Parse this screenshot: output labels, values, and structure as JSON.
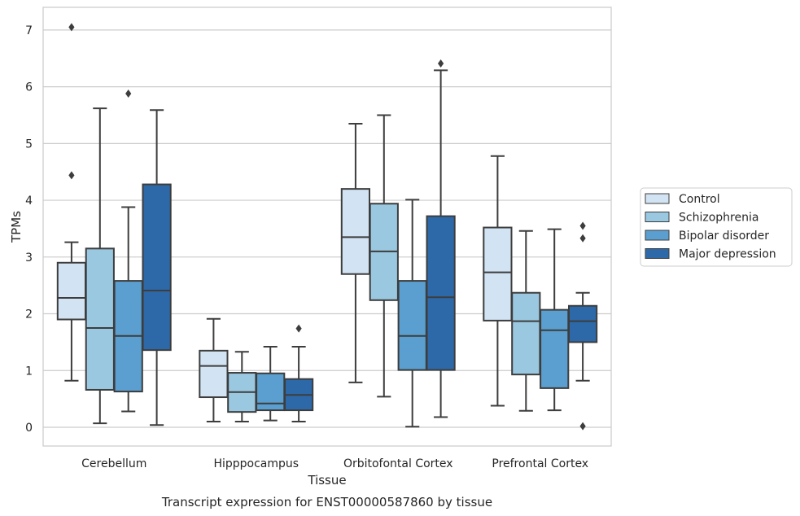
{
  "caption": "Transcript expression for ENST00000587860 by tissue",
  "chart_data": {
    "type": "boxplot",
    "xlabel": "Tissue",
    "ylabel": "TPMs",
    "ylim": [
      -0.33,
      7.4
    ],
    "yticks": [
      0,
      1,
      2,
      3,
      4,
      5,
      6,
      7
    ],
    "categories": [
      "Cerebellum",
      "Hipppocampus",
      "Orbitofontal Cortex",
      "Prefrontal Cortex"
    ],
    "grid": "horizontal",
    "legend_position": "right",
    "series": [
      {
        "name": "Control",
        "color": "#d2e3f3",
        "boxes": [
          {
            "whisker_low": 0.82,
            "q1": 1.9,
            "median": 2.28,
            "q3": 2.9,
            "whisker_high": 3.26,
            "outliers": [
              7.05,
              4.44
            ]
          },
          {
            "whisker_low": 0.1,
            "q1": 0.53,
            "median": 1.08,
            "q3": 1.35,
            "whisker_high": 1.91,
            "outliers": []
          },
          {
            "whisker_low": 0.79,
            "q1": 2.7,
            "median": 3.35,
            "q3": 4.2,
            "whisker_high": 5.35,
            "outliers": []
          },
          {
            "whisker_low": 0.38,
            "q1": 1.88,
            "median": 2.73,
            "q3": 3.52,
            "whisker_high": 4.78,
            "outliers": []
          }
        ]
      },
      {
        "name": "Schizophrenia",
        "color": "#9ac8e0",
        "boxes": [
          {
            "whisker_low": 0.07,
            "q1": 0.66,
            "median": 1.75,
            "q3": 3.15,
            "whisker_high": 5.62,
            "outliers": []
          },
          {
            "whisker_low": 0.1,
            "q1": 0.27,
            "median": 0.62,
            "q3": 0.96,
            "whisker_high": 1.33,
            "outliers": []
          },
          {
            "whisker_low": 0.54,
            "q1": 2.24,
            "median": 3.1,
            "q3": 3.94,
            "whisker_high": 5.5,
            "outliers": []
          },
          {
            "whisker_low": 0.29,
            "q1": 0.93,
            "median": 1.87,
            "q3": 2.37,
            "whisker_high": 3.46,
            "outliers": []
          }
        ]
      },
      {
        "name": "Bipolar disorder",
        "color": "#5a9fcf",
        "boxes": [
          {
            "whisker_low": 0.28,
            "q1": 0.63,
            "median": 1.61,
            "q3": 2.58,
            "whisker_high": 3.88,
            "outliers": [
              5.88
            ]
          },
          {
            "whisker_low": 0.12,
            "q1": 0.3,
            "median": 0.42,
            "q3": 0.95,
            "whisker_high": 1.42,
            "outliers": []
          },
          {
            "whisker_low": 0.01,
            "q1": 1.01,
            "median": 1.61,
            "q3": 2.58,
            "whisker_high": 4.01,
            "outliers": []
          },
          {
            "whisker_low": 0.3,
            "q1": 0.69,
            "median": 1.71,
            "q3": 2.07,
            "whisker_high": 3.49,
            "outliers": []
          }
        ]
      },
      {
        "name": "Major depression",
        "color": "#2d69a8",
        "boxes": [
          {
            "whisker_low": 0.04,
            "q1": 1.36,
            "median": 2.41,
            "q3": 4.28,
            "whisker_high": 5.59,
            "outliers": []
          },
          {
            "whisker_low": 0.1,
            "q1": 0.3,
            "median": 0.57,
            "q3": 0.85,
            "whisker_high": 1.42,
            "outliers": [
              1.74
            ]
          },
          {
            "whisker_low": 0.18,
            "q1": 1.01,
            "median": 2.29,
            "q3": 3.72,
            "whisker_high": 6.29,
            "outliers": [
              6.41
            ]
          },
          {
            "whisker_low": 0.82,
            "q1": 1.5,
            "median": 1.87,
            "q3": 2.14,
            "whisker_high": 2.37,
            "outliers": [
              3.55,
              3.33,
              0.02
            ]
          }
        ]
      }
    ]
  }
}
